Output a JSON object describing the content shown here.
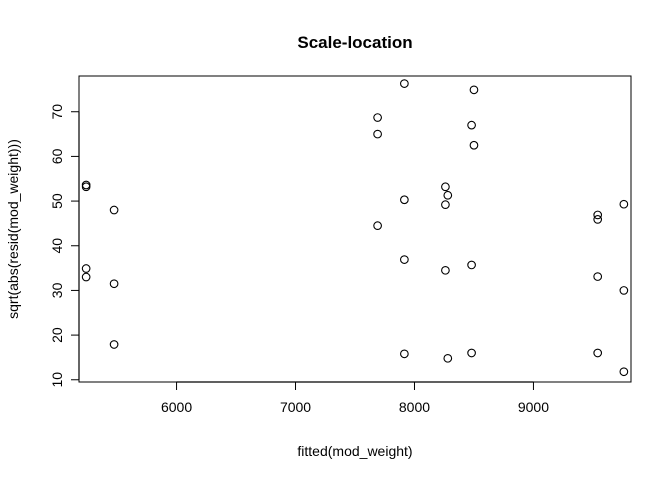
{
  "chart_data": {
    "type": "scatter",
    "title": "Scale-location",
    "xlabel": "fitted(mod_weight)",
    "ylabel": "sqrt(abs(resid(mod_weight)))",
    "xlim": [
      5180,
      9820
    ],
    "ylim": [
      9.5,
      78
    ],
    "xticks": [
      6000,
      7000,
      8000,
      9000
    ],
    "yticks": [
      10,
      20,
      30,
      40,
      50,
      60,
      70
    ],
    "grid": false,
    "legend": "none",
    "marker": "open-circle",
    "colors": {
      "marker": "#000000",
      "axes": "#000000",
      "background": "#ffffff"
    },
    "points": [
      {
        "x": 5240,
        "y": 53.6
      },
      {
        "x": 5240,
        "y": 53.2
      },
      {
        "x": 5240,
        "y": 34.9
      },
      {
        "x": 5240,
        "y": 33.0
      },
      {
        "x": 5475,
        "y": 48.0
      },
      {
        "x": 5475,
        "y": 31.5
      },
      {
        "x": 5475,
        "y": 17.9
      },
      {
        "x": 7690,
        "y": 68.7
      },
      {
        "x": 7690,
        "y": 65.0
      },
      {
        "x": 7690,
        "y": 44.5
      },
      {
        "x": 7915,
        "y": 76.3
      },
      {
        "x": 7915,
        "y": 50.3
      },
      {
        "x": 7915,
        "y": 36.9
      },
      {
        "x": 7915,
        "y": 15.8
      },
      {
        "x": 8260,
        "y": 53.2
      },
      {
        "x": 8260,
        "y": 49.2
      },
      {
        "x": 8260,
        "y": 34.5
      },
      {
        "x": 8280,
        "y": 51.3
      },
      {
        "x": 8280,
        "y": 14.8
      },
      {
        "x": 8480,
        "y": 67.0
      },
      {
        "x": 8480,
        "y": 35.7
      },
      {
        "x": 8480,
        "y": 16.0
      },
      {
        "x": 8500,
        "y": 74.9
      },
      {
        "x": 8500,
        "y": 62.5
      },
      {
        "x": 9540,
        "y": 46.9
      },
      {
        "x": 9540,
        "y": 45.9
      },
      {
        "x": 9540,
        "y": 33.1
      },
      {
        "x": 9540,
        "y": 16.0
      },
      {
        "x": 9760,
        "y": 49.3
      },
      {
        "x": 9760,
        "y": 30.0
      },
      {
        "x": 9760,
        "y": 11.8
      }
    ]
  }
}
